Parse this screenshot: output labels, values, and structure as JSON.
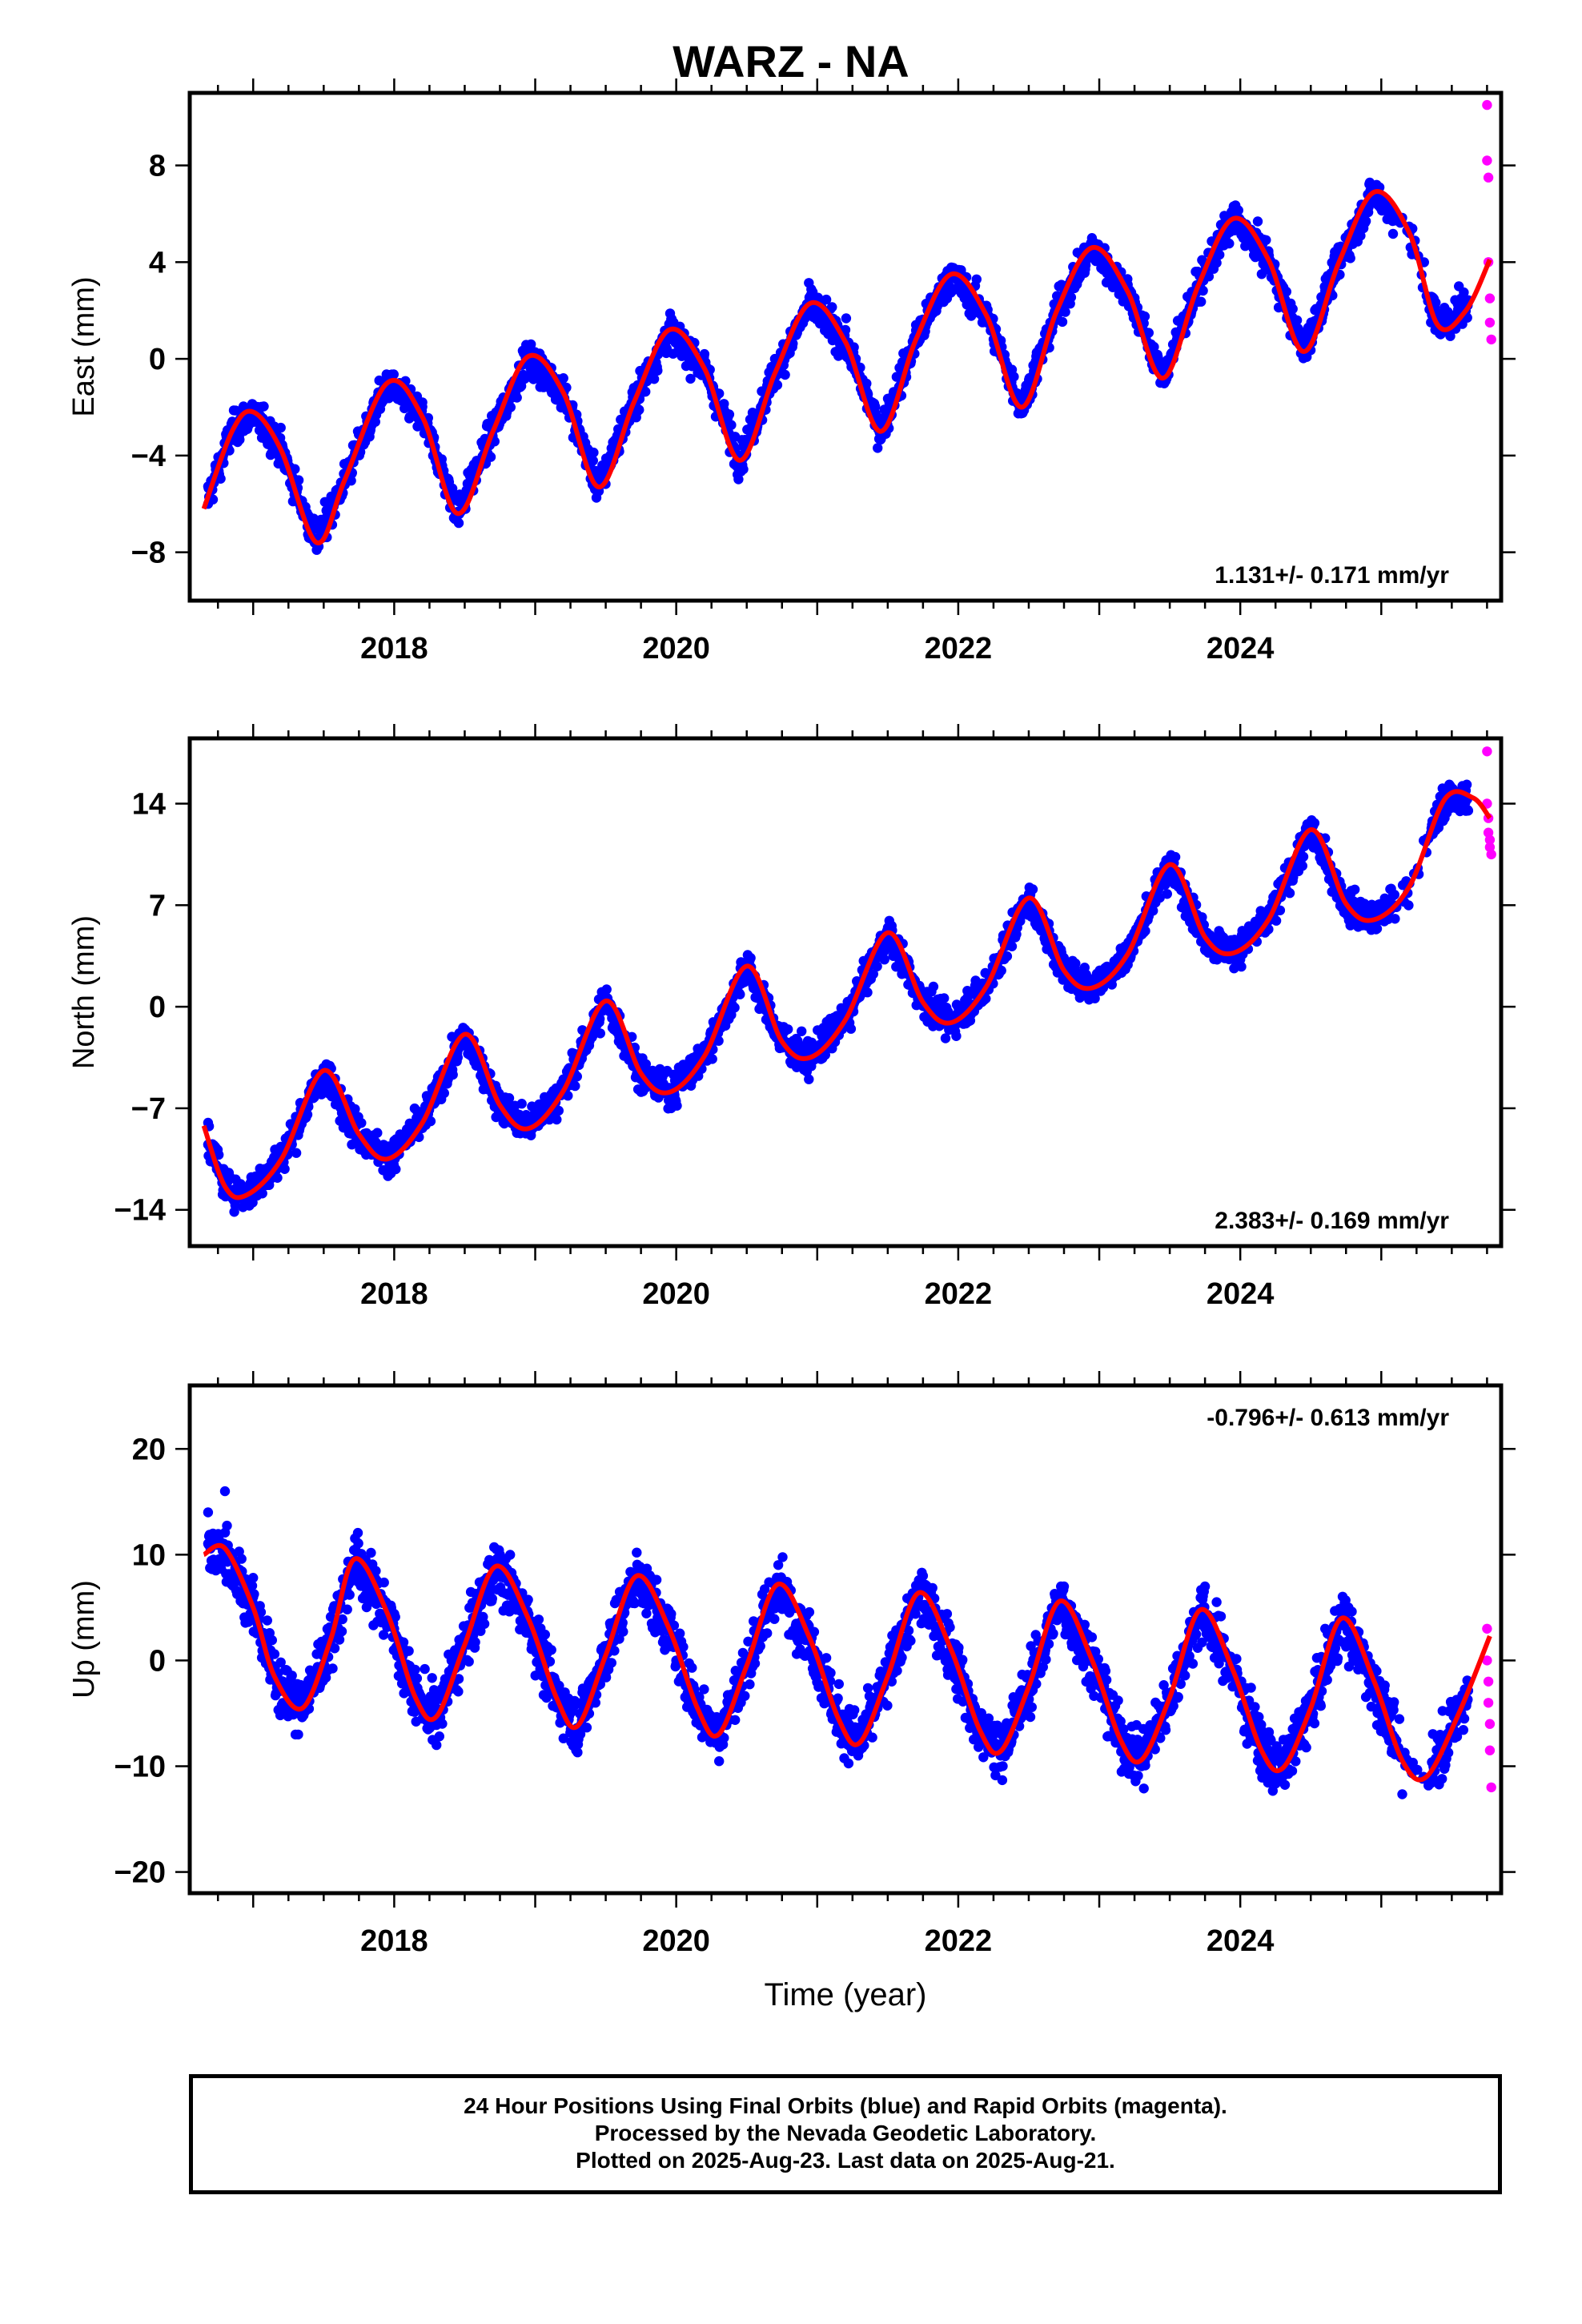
{
  "title": "WARZ - NA",
  "caption": {
    "line1": "24 Hour Positions Using Final Orbits (blue) and Rapid Orbits (magenta).",
    "line2": "Processed by the Nevada Geodetic Laboratory.",
    "line3": "Plotted on 2025-Aug-23. Last data on 2025-Aug-21."
  },
  "colors": {
    "final": "#0000ff",
    "rapid": "#ff00ff",
    "model": "#ff0000",
    "frame": "#000000"
  },
  "chart_data": [
    {
      "type": "scatter",
      "ylabel": "East (mm)",
      "xlabel": "",
      "rate_label": "1.131+/- 0.171 mm/yr",
      "rate_position": "bottom-right",
      "xlim": [
        2016.55,
        2025.85
      ],
      "ylim": [
        -10,
        11
      ],
      "xticks": [
        2018,
        2020,
        2022,
        2024
      ],
      "yticks": [
        -8,
        -4,
        0,
        4,
        8
      ],
      "grid": false,
      "series": [
        {
          "role": "final",
          "style": "points",
          "x": [
            2016.68,
            2016.9,
            2017.15,
            2017.45,
            2017.7,
            2017.95,
            2018.2,
            2018.45,
            2018.7,
            2018.95,
            2019.2,
            2019.45,
            2019.7,
            2019.95,
            2020.2,
            2020.45,
            2020.7,
            2020.95,
            2021.2,
            2021.45,
            2021.7,
            2021.95,
            2022.2,
            2022.45,
            2022.7,
            2022.95,
            2023.2,
            2023.45,
            2023.7,
            2023.95,
            2024.2,
            2024.45,
            2024.7,
            2024.95,
            2025.2,
            2025.4,
            2025.55
          ],
          "y": [
            -6.0,
            -2.6,
            -2.8,
            -7.6,
            -4.2,
            -1.0,
            -1.8,
            -6.4,
            -2.4,
            0.2,
            -0.8,
            -5.2,
            -1.2,
            1.3,
            0.2,
            -4.2,
            0.0,
            2.4,
            1.2,
            -2.9,
            1.4,
            3.5,
            2.2,
            -2.0,
            2.6,
            4.6,
            3.3,
            -0.8,
            3.6,
            5.8,
            4.4,
            0.4,
            4.6,
            6.9,
            5.2,
            1.5,
            3.0
          ]
        },
        {
          "role": "rapid",
          "style": "points",
          "x": [
            2025.75,
            2025.75,
            2025.76,
            2025.76,
            2025.77,
            2025.77,
            2025.78
          ],
          "y": [
            10.5,
            8.2,
            7.5,
            4.0,
            2.5,
            1.5,
            0.8
          ]
        },
        {
          "role": "model",
          "style": "line",
          "x": [
            2016.65,
            2016.85,
            2017.0,
            2017.2,
            2017.45,
            2017.65,
            2017.95,
            2018.2,
            2018.45,
            2018.7,
            2018.95,
            2019.2,
            2019.45,
            2019.7,
            2019.95,
            2020.2,
            2020.45,
            2020.7,
            2020.95,
            2021.2,
            2021.45,
            2021.7,
            2021.95,
            2022.2,
            2022.45,
            2022.7,
            2022.95,
            2023.2,
            2023.45,
            2023.7,
            2023.95,
            2024.2,
            2024.45,
            2024.7,
            2024.95,
            2025.2,
            2025.4,
            2025.6,
            2025.77
          ],
          "y": [
            -6.2,
            -3.0,
            -2.2,
            -3.8,
            -7.6,
            -5.0,
            -1.0,
            -2.4,
            -6.4,
            -3.0,
            0.1,
            -1.4,
            -5.3,
            -1.8,
            1.2,
            -0.4,
            -4.2,
            -0.6,
            2.3,
            0.7,
            -3.0,
            0.8,
            3.5,
            1.8,
            -2.0,
            2.0,
            4.6,
            2.8,
            -0.8,
            3.0,
            5.8,
            4.1,
            0.3,
            4.0,
            6.9,
            5.2,
            1.4,
            2.0,
            4.1
          ]
        }
      ]
    },
    {
      "type": "scatter",
      "ylabel": "North (mm)",
      "xlabel": "",
      "rate_label": "2.383+/- 0.169 mm/yr",
      "rate_position": "bottom-right",
      "xlim": [
        2016.55,
        2025.85
      ],
      "ylim": [
        -16.5,
        18.5
      ],
      "xticks": [
        2018,
        2020,
        2022,
        2024
      ],
      "yticks": [
        -14,
        -7,
        0,
        7,
        14
      ],
      "grid": false,
      "series": [
        {
          "role": "final",
          "style": "points",
          "x": [
            2016.68,
            2016.9,
            2017.15,
            2017.45,
            2017.7,
            2017.95,
            2018.2,
            2018.5,
            2018.75,
            2018.95,
            2019.2,
            2019.5,
            2019.75,
            2019.95,
            2020.2,
            2020.5,
            2020.75,
            2020.95,
            2021.2,
            2021.5,
            2021.75,
            2021.95,
            2022.2,
            2022.5,
            2022.75,
            2022.95,
            2023.2,
            2023.5,
            2023.75,
            2023.95,
            2024.2,
            2024.5,
            2024.75,
            2024.95,
            2025.2,
            2025.45,
            2025.6
          ],
          "y": [
            -8.0,
            -12.8,
            -11.0,
            -5.0,
            -9.5,
            -10.5,
            -7.5,
            -2.0,
            -7.0,
            -8.0,
            -5.0,
            0.4,
            -5.0,
            -5.6,
            -3.0,
            2.8,
            -2.0,
            -3.0,
            -0.5,
            5.0,
            0.5,
            -1.0,
            1.5,
            7.5,
            3.0,
            1.5,
            3.5,
            9.5,
            5.0,
            3.5,
            6.0,
            12.0,
            7.5,
            6.5,
            8.5,
            13.0,
            13.5
          ]
        },
        {
          "role": "rapid",
          "style": "points",
          "x": [
            2025.75,
            2025.75,
            2025.76,
            2025.76,
            2025.77,
            2025.77,
            2025.78
          ],
          "y": [
            17.6,
            14.0,
            13.0,
            12.0,
            11.5,
            11.0,
            10.5
          ]
        },
        {
          "role": "model",
          "style": "line",
          "x": [
            2016.65,
            2016.8,
            2016.95,
            2017.2,
            2017.5,
            2017.75,
            2017.95,
            2018.2,
            2018.5,
            2018.75,
            2018.95,
            2019.2,
            2019.5,
            2019.75,
            2019.95,
            2020.2,
            2020.5,
            2020.75,
            2020.95,
            2021.2,
            2021.5,
            2021.75,
            2021.95,
            2022.2,
            2022.5,
            2022.75,
            2022.95,
            2023.2,
            2023.5,
            2023.75,
            2023.95,
            2024.2,
            2024.5,
            2024.75,
            2024.95,
            2025.2,
            2025.45,
            2025.65,
            2025.77
          ],
          "y": [
            -8.2,
            -12.4,
            -13.0,
            -10.5,
            -4.4,
            -8.8,
            -10.5,
            -8.0,
            -1.9,
            -6.8,
            -8.4,
            -5.8,
            0.4,
            -4.6,
            -5.9,
            -3.4,
            2.8,
            -2.4,
            -3.5,
            -0.9,
            5.1,
            0.3,
            -1.1,
            1.4,
            7.5,
            2.5,
            1.3,
            3.6,
            9.8,
            4.8,
            3.7,
            6.0,
            12.2,
            7.1,
            6.0,
            8.3,
            14.3,
            14.4,
            13.0
          ]
        }
      ]
    },
    {
      "type": "scatter",
      "ylabel": "Up (mm)",
      "xlabel": "Time (year)",
      "rate_label": "-0.796+/- 0.613 mm/yr",
      "rate_position": "top-right",
      "xlim": [
        2016.55,
        2025.85
      ],
      "ylim": [
        -22,
        26
      ],
      "xticks": [
        2018,
        2020,
        2022,
        2024
      ],
      "yticks": [
        -20,
        -10,
        0,
        10,
        20
      ],
      "grid": false,
      "series": [
        {
          "role": "final",
          "style": "points",
          "x": [
            2016.68,
            2016.8,
            2017.0,
            2017.3,
            2017.55,
            2017.75,
            2018.0,
            2018.3,
            2018.55,
            2018.75,
            2019.0,
            2019.3,
            2019.55,
            2019.75,
            2020.0,
            2020.3,
            2020.55,
            2020.75,
            2021.0,
            2021.3,
            2021.55,
            2021.75,
            2022.0,
            2022.3,
            2022.55,
            2022.75,
            2023.0,
            2023.3,
            2023.55,
            2023.75,
            2024.0,
            2024.3,
            2024.55,
            2024.75,
            2025.0,
            2025.3,
            2025.6
          ],
          "y": [
            14.0,
            16.0,
            6.0,
            -7.0,
            2.0,
            10.0,
            3.0,
            -8.0,
            2.0,
            10.0,
            2.0,
            -7.0,
            2.0,
            8.0,
            0.0,
            -7.0,
            1.0,
            7.0,
            0.0,
            -8.0,
            1.0,
            8.0,
            0.0,
            -9.0,
            0.0,
            7.0,
            -1.0,
            -10.0,
            -1.0,
            7.0,
            -2.0,
            -11.0,
            -2.0,
            5.0,
            -3.0,
            -11.0,
            -3.0
          ]
        },
        {
          "role": "rapid",
          "style": "points",
          "x": [
            2025.75,
            2025.75,
            2025.76,
            2025.76,
            2025.77,
            2025.77,
            2025.78
          ],
          "y": [
            3.0,
            0.0,
            -2.0,
            -4.0,
            -6.0,
            -8.5,
            -12.0
          ]
        },
        {
          "role": "model",
          "style": "line",
          "x": [
            2016.65,
            2016.8,
            2017.0,
            2017.15,
            2017.35,
            2017.55,
            2017.72,
            2017.95,
            2018.15,
            2018.3,
            2018.5,
            2018.72,
            2018.95,
            2019.15,
            2019.3,
            2019.5,
            2019.72,
            2019.95,
            2020.15,
            2020.3,
            2020.5,
            2020.72,
            2020.95,
            2021.15,
            2021.3,
            2021.5,
            2021.72,
            2021.95,
            2022.15,
            2022.3,
            2022.5,
            2022.72,
            2022.95,
            2023.15,
            2023.3,
            2023.5,
            2023.72,
            2023.95,
            2024.15,
            2024.3,
            2024.5,
            2024.72,
            2024.95,
            2025.15,
            2025.32,
            2025.55,
            2025.77
          ],
          "y": [
            10.0,
            10.6,
            5.0,
            -1.5,
            -4.5,
            2.0,
            9.6,
            4.5,
            -3.5,
            -5.3,
            1.5,
            8.9,
            4.0,
            -3.5,
            -6.2,
            0.5,
            8.0,
            3.0,
            -4.5,
            -7.0,
            -0.5,
            7.2,
            2.0,
            -5.5,
            -7.8,
            -1.5,
            6.4,
            1.0,
            -6.5,
            -8.6,
            -2.5,
            5.6,
            0.0,
            -7.5,
            -9.4,
            -3.5,
            4.8,
            -1.0,
            -8.5,
            -10.2,
            -4.5,
            4.0,
            -2.0,
            -9.5,
            -11.0,
            -5.0,
            2.3
          ]
        }
      ]
    }
  ]
}
